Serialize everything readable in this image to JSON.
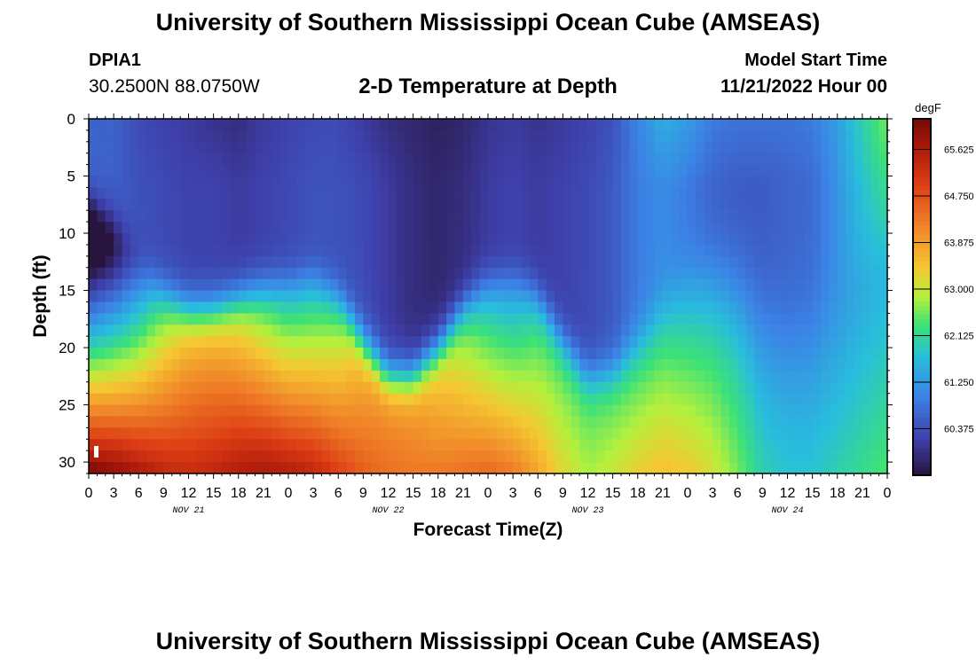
{
  "header": {
    "title": "University of Southern Mississippi Ocean Cube (AMSEAS)",
    "station": "DPIA1",
    "coords": "30.2500N  88.0750W",
    "subtitle": "2-D Temperature at Depth",
    "model_start_label": "Model Start Time",
    "model_start_value": "11/21/2022 Hour 00"
  },
  "footer": {
    "title": "University of Southern Mississippi Ocean Cube (AMSEAS)"
  },
  "chart_data": {
    "type": "heatmap",
    "title": "2-D Temperature at Depth",
    "xlabel": "Forecast Time(Z)",
    "ylabel": "Depth (ft)",
    "x_range_hours": [
      0,
      96
    ],
    "ylim": [
      0,
      31
    ],
    "y_inverted": true,
    "x_tick_labels": [
      "0",
      "3",
      "6",
      "9",
      "12",
      "15",
      "18",
      "21",
      "0",
      "3",
      "6",
      "9",
      "12",
      "15",
      "18",
      "21",
      "0",
      "3",
      "6",
      "9",
      "12",
      "15",
      "18",
      "21",
      "0",
      "3",
      "6",
      "9",
      "12",
      "15",
      "18",
      "21",
      "0"
    ],
    "y_ticks": [
      0,
      5,
      10,
      15,
      20,
      25,
      30
    ],
    "day_labels": [
      {
        "label": "NOV 21",
        "hour": 12
      },
      {
        "label": "NOV 22",
        "hour": 36
      },
      {
        "label": "NOV 23",
        "hour": 60
      },
      {
        "label": "NOV 24",
        "hour": 84
      }
    ],
    "colorbar": {
      "unit": "degF",
      "ticks": [
        "65.625",
        "64.750",
        "63.875",
        "63.000",
        "62.125",
        "61.250",
        "60.375"
      ],
      "tick_values": [
        65.625,
        64.75,
        63.875,
        63.0,
        62.125,
        61.25,
        60.375
      ],
      "range": [
        59.5,
        66.2
      ]
    },
    "profiles": {
      "hours": [
        0,
        3,
        6,
        9,
        12,
        15,
        18,
        21,
        24,
        27,
        30,
        33,
        36,
        39,
        42,
        45,
        48,
        51,
        54,
        57,
        60,
        63,
        66,
        69,
        72,
        75,
        78,
        81,
        84,
        87,
        90,
        93,
        96
      ],
      "surface_temp": [
        60.6,
        60.6,
        60.3,
        60.2,
        60.1,
        60.0,
        59.9,
        60.1,
        60.2,
        60.3,
        60.3,
        60.1,
        59.9,
        59.8,
        59.7,
        59.8,
        60.0,
        60.1,
        60.0,
        60.1,
        60.2,
        60.4,
        61.0,
        61.5,
        61.3,
        60.9,
        60.8,
        60.8,
        60.8,
        60.9,
        61.3,
        62.0,
        62.6
      ],
      "mid_temp": [
        60.7,
        60.6,
        60.4,
        60.3,
        60.2,
        60.2,
        60.1,
        60.2,
        60.3,
        60.4,
        60.4,
        60.3,
        60.1,
        59.9,
        59.8,
        59.9,
        60.1,
        60.2,
        60.1,
        60.2,
        60.3,
        60.5,
        60.9,
        61.1,
        60.9,
        60.6,
        60.5,
        60.5,
        60.6,
        60.7,
        61.2,
        61.8,
        62.3
      ],
      "thermocline_depth": [
        8.5,
        10.0,
        12.5,
        15.0,
        16.5,
        16.5,
        15.5,
        14.5,
        14.0,
        13.5,
        15.5,
        19.5,
        22.5,
        22.5,
        20.0,
        16.5,
        14.0,
        13.5,
        15.5,
        19.5,
        22.5,
        22.0,
        19.5,
        16.5,
        14.0,
        13.5,
        14.5,
        16.5,
        18.5,
        18.0,
        15.5,
        12.5,
        10.5
      ],
      "thermocline_width": [
        2.5,
        2.5,
        2.5,
        2.5,
        2.5,
        2.5,
        2.5,
        2.5,
        2.5,
        2.5,
        2.5,
        2.5,
        2.5,
        2.5,
        2.5,
        2.5,
        2.5,
        2.5,
        2.5,
        2.5,
        2.5,
        2.5,
        3.0,
        4.0,
        5.0,
        5.5,
        6.0,
        6.5,
        6.5,
        6.5,
        6.0,
        5.0,
        4.5
      ],
      "bottom_temp": [
        66.2,
        66.0,
        65.7,
        65.4,
        65.3,
        65.4,
        65.6,
        65.7,
        65.6,
        65.4,
        65.0,
        64.6,
        64.4,
        64.3,
        64.3,
        64.4,
        64.5,
        64.3,
        63.8,
        63.2,
        62.8,
        63.0,
        63.3,
        63.5,
        63.4,
        63.1,
        62.6,
        62.0,
        61.8,
        61.8,
        62.0,
        62.2,
        62.4
      ],
      "bottom_gradient": [
        0.38,
        0.34,
        0.28,
        0.2,
        0.15,
        0.15,
        0.18,
        0.22,
        0.24,
        0.22,
        0.18,
        0.1,
        0.06,
        0.06,
        0.1,
        0.14,
        0.18,
        0.18,
        0.12,
        0.08,
        0.06,
        0.08,
        0.1,
        0.1,
        0.1,
        0.08,
        0.06,
        0.05,
        0.04,
        0.04,
        0.05,
        0.05,
        0.05
      ]
    }
  }
}
